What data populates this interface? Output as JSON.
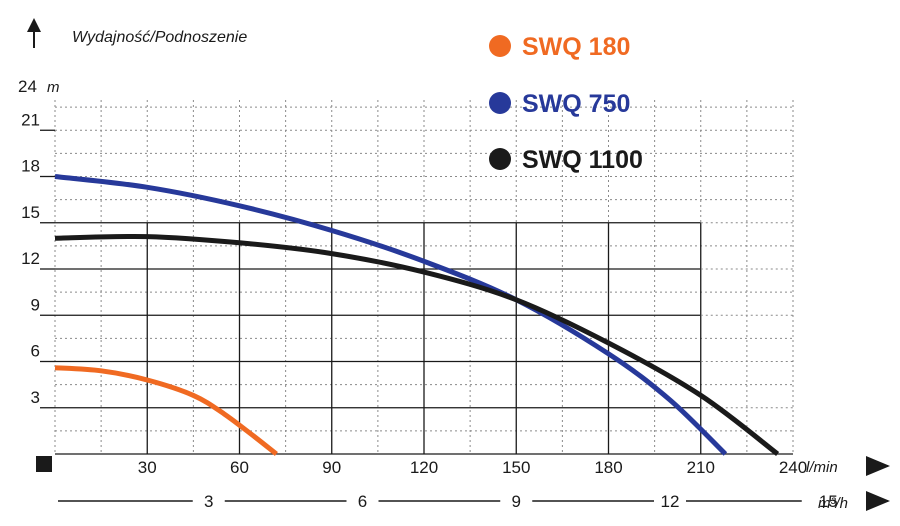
{
  "chart_data": {
    "type": "line",
    "title": "Wydajność/Podnoszenie",
    "ylabel_unit": "m",
    "ylabel_value": "24",
    "xlabel_unit": "l/min",
    "x2label_unit": "m³/h",
    "xlim": [
      0,
      240
    ],
    "ylim": [
      0,
      24
    ],
    "x_ticks": [
      "30",
      "60",
      "90",
      "120",
      "150",
      "180",
      "210",
      "240"
    ],
    "y_ticks": [
      "3",
      "6",
      "9",
      "12",
      "15",
      "18",
      "21"
    ],
    "x2_ticks": [
      "3",
      "6",
      "9",
      "12",
      "15"
    ],
    "legend_position": "top-right",
    "series": [
      {
        "name": "SWQ 180",
        "color": "#f06a22",
        "x": [
          0,
          15,
          30,
          45,
          55,
          65,
          72
        ],
        "y": [
          5.6,
          5.4,
          4.8,
          3.8,
          2.6,
          1.1,
          0
        ]
      },
      {
        "name": "SWQ 750",
        "color": "#27399a",
        "x": [
          0,
          30,
          60,
          90,
          120,
          150,
          180,
          200,
          218
        ],
        "y": [
          18,
          17.3,
          16.1,
          14.5,
          12.5,
          10,
          6.5,
          3.5,
          0
        ]
      },
      {
        "name": "SWQ 1100",
        "color": "#1a1a1a",
        "x": [
          0,
          30,
          60,
          90,
          120,
          150,
          180,
          210,
          235
        ],
        "y": [
          14,
          14.1,
          13.7,
          13,
          11.8,
          10,
          7.2,
          3.8,
          0
        ]
      }
    ]
  }
}
